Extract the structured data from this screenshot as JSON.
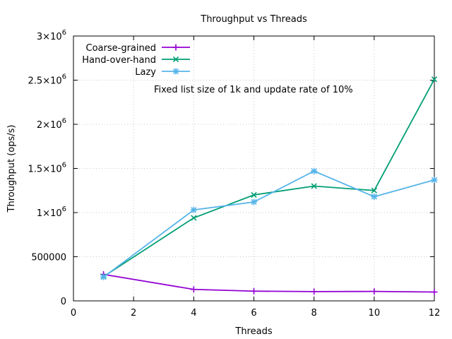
{
  "chart_data": {
    "type": "line",
    "title": "Throughput vs Threads",
    "xlabel": "Threads",
    "ylabel": "Throughput (ops/s)",
    "annotation": "Fixed list size of 1k and update rate of 10%",
    "xlim": [
      0,
      12
    ],
    "ylim": [
      0,
      3000000
    ],
    "grid": true,
    "legend_position": "top-left",
    "x_ticks": [
      {
        "value": 0,
        "label": "0"
      },
      {
        "value": 2,
        "label": "2"
      },
      {
        "value": 4,
        "label": "4"
      },
      {
        "value": 6,
        "label": "6"
      },
      {
        "value": 8,
        "label": "8"
      },
      {
        "value": 10,
        "label": "10"
      },
      {
        "value": 12,
        "label": "12"
      }
    ],
    "y_ticks": [
      {
        "value": 0,
        "mant": "0",
        "exp": ""
      },
      {
        "value": 500000,
        "mant": "500000",
        "exp": ""
      },
      {
        "value": 1000000,
        "mant": "1×10",
        "exp": "6"
      },
      {
        "value": 1500000,
        "mant": "1.5×10",
        "exp": "6"
      },
      {
        "value": 2000000,
        "mant": "2×10",
        "exp": "6"
      },
      {
        "value": 2500000,
        "mant": "2.5×10",
        "exp": "6"
      },
      {
        "value": 3000000,
        "mant": "3×10",
        "exp": "6"
      }
    ],
    "series": [
      {
        "name": "Coarse-grained",
        "color": "#9400d3",
        "marker": "plus",
        "x": [
          1,
          4,
          6,
          8,
          10,
          12
        ],
        "y": [
          300000,
          130000,
          110000,
          105000,
          107000,
          100000
        ]
      },
      {
        "name": "Hand-over-hand",
        "color": "#009e73",
        "marker": "cross",
        "x": [
          1,
          4,
          6,
          8,
          10,
          12
        ],
        "y": [
          275000,
          940000,
          1200000,
          1300000,
          1250000,
          2510000
        ]
      },
      {
        "name": "Lazy",
        "color": "#56b4e9",
        "marker": "star",
        "x": [
          1,
          4,
          6,
          8,
          10,
          12
        ],
        "y": [
          270000,
          1030000,
          1120000,
          1470000,
          1180000,
          1370000
        ]
      }
    ]
  }
}
